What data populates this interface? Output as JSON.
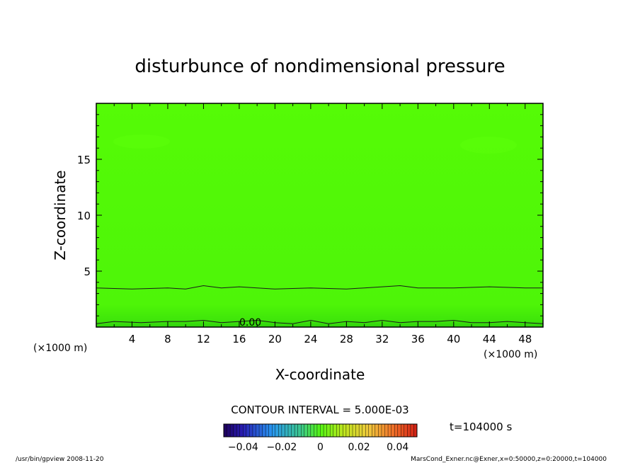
{
  "chart_data": {
    "type": "heatmap",
    "title": "disturbunce of nondimensional pressure",
    "xlabel": "X-coordinate",
    "ylabel": "Z-coordinate",
    "x_unit_left": "(×1000 m)",
    "x_unit_right": "(×1000 m)",
    "xlim": [
      0,
      50
    ],
    "ylim": [
      0,
      20
    ],
    "x_ticks": [
      4,
      8,
      12,
      16,
      20,
      24,
      28,
      32,
      36,
      40,
      44,
      48
    ],
    "y_ticks": [
      5,
      10,
      15
    ],
    "contour_label": "0.00",
    "contour_interval_text": "CONTOUR INTERVAL = 5.000E-03",
    "time_text": "t=104000 s",
    "colorbar": {
      "min": -0.05,
      "max": 0.05,
      "tick_labels": [
        "−0.04",
        "−0.02",
        "0",
        "0.02",
        "0.04"
      ],
      "tick_values": [
        -0.04,
        -0.02,
        0,
        0.02,
        0.04
      ]
    },
    "contours": [
      {
        "level": 0.0,
        "x": [
          0,
          2,
          5,
          8,
          10,
          12,
          14,
          16,
          18,
          20,
          22,
          24,
          26,
          28,
          30,
          32,
          34,
          36,
          38,
          40,
          42,
          44,
          46,
          48,
          50
        ],
        "z": [
          0.3,
          0.5,
          0.4,
          0.5,
          0.5,
          0.6,
          0.4,
          0.5,
          0.6,
          0.4,
          0.3,
          0.6,
          0.3,
          0.5,
          0.4,
          0.6,
          0.4,
          0.5,
          0.5,
          0.6,
          0.4,
          0.4,
          0.5,
          0.4,
          0.3
        ]
      },
      {
        "level": 0.005,
        "x": [
          0,
          4,
          8,
          10,
          12,
          14,
          16,
          18,
          20,
          24,
          28,
          30,
          32,
          34,
          36,
          40,
          44,
          48,
          50
        ],
        "z": [
          3.5,
          3.4,
          3.5,
          3.4,
          3.7,
          3.5,
          3.6,
          3.5,
          3.4,
          3.5,
          3.4,
          3.5,
          3.6,
          3.7,
          3.5,
          3.5,
          3.6,
          3.5,
          3.5
        ]
      }
    ]
  },
  "footer": {
    "left": "/usr/bin/gpview   2008-11-20",
    "right": "MarsCond_Exner.nc@Exner,x=0:50000,z=0:20000,t=104000"
  }
}
